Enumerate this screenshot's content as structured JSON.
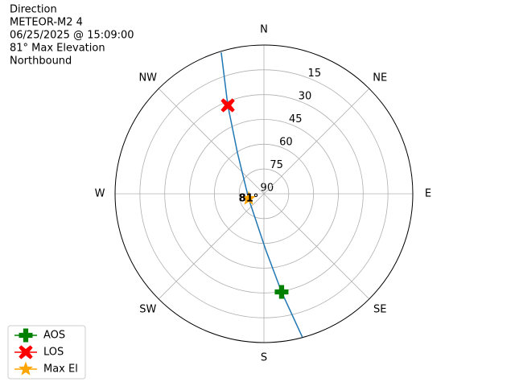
{
  "chart_data": {
    "type": "polar",
    "text_lines": [
      "Direction",
      "METEOR-M2 4",
      "06/25/2025 @ 15:09:00",
      "81° Max Elevation",
      "Northbound"
    ],
    "theta_ticks": [
      {
        "value": 0,
        "label": "N"
      },
      {
        "value": 45,
        "label": "NE"
      },
      {
        "value": 90,
        "label": "E"
      },
      {
        "value": 135,
        "label": "SE"
      },
      {
        "value": 180,
        "label": "S"
      },
      {
        "value": 225,
        "label": "SW"
      },
      {
        "value": 270,
        "label": "W"
      },
      {
        "value": 315,
        "label": "NW"
      }
    ],
    "rlim": [
      90,
      0
    ],
    "rticks": [
      90,
      75,
      60,
      45,
      30,
      15
    ],
    "grid": true,
    "track": {
      "color": "#1f77b4",
      "az": [
        343.2,
        337.8,
        327.1,
        252.5,
        178.3,
        169.8,
        165.0
      ],
      "el": [
        0.6,
        32.2,
        60.5,
        80.3,
        56.4,
        29.7,
        0.2
      ]
    },
    "series": [
      {
        "name": "AOS",
        "color": "green",
        "marker": "plus",
        "az": [
          169.8
        ],
        "el": [
          29.7
        ]
      },
      {
        "name": "LOS",
        "color": "red",
        "marker": "x",
        "az": [
          337.8
        ],
        "el": [
          32.2
        ]
      },
      {
        "name": "Max El",
        "color": "orange",
        "marker": "star",
        "az": [
          252.5
        ],
        "el": [
          80.3
        ]
      }
    ],
    "annotation": {
      "text": "81°",
      "az": 252.5,
      "el": 80.3
    },
    "legend": "lower left"
  }
}
